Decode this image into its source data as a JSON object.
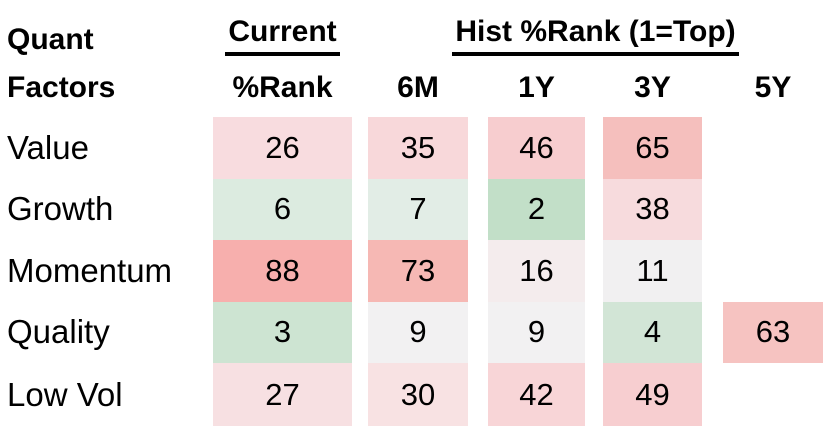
{
  "table": {
    "corner": {
      "line1": "Quant",
      "line2": "Factors"
    },
    "group_headers": {
      "current": "Current",
      "hist": "Hist %Rank (1=Top)"
    },
    "column_headers": {
      "current_rank": "%Rank",
      "h6m": "6M",
      "h1y": "1Y",
      "h3y": "3Y",
      "h5y": "5Y"
    }
  },
  "chart_data": {
    "type": "heatmap",
    "title": "Quant Factors",
    "columns": [
      "Current %Rank",
      "6M",
      "1Y",
      "3Y",
      "5Y"
    ],
    "note": "Percentile ranks, 1=Top; low values shaded green, mid ~white/grey, high values shaded red; blank cells have no data",
    "color_scale": {
      "low": "#c2dfc8",
      "mid": "#f2f1f2",
      "high": "#f7afad"
    },
    "rows": [
      {
        "label": "Value",
        "cells": [
          {
            "v": 26,
            "bg": "#f8dcdf"
          },
          {
            "v": 35,
            "bg": "#f8d8da"
          },
          {
            "v": 46,
            "bg": "#f7cdcf"
          },
          {
            "v": 65,
            "bg": "#f5bfbd"
          },
          {
            "v": null,
            "bg": ""
          }
        ]
      },
      {
        "label": "Growth",
        "cells": [
          {
            "v": 6,
            "bg": "#dcebe0"
          },
          {
            "v": 7,
            "bg": "#e2ede6"
          },
          {
            "v": 2,
            "bg": "#c2dfc8"
          },
          {
            "v": 38,
            "bg": "#f7dbdd"
          },
          {
            "v": null,
            "bg": ""
          }
        ]
      },
      {
        "label": "Momentum",
        "cells": [
          {
            "v": 88,
            "bg": "#f7afad"
          },
          {
            "v": 73,
            "bg": "#f6b8b4"
          },
          {
            "v": 16,
            "bg": "#f4eced"
          },
          {
            "v": 11,
            "bg": "#f1f0f1"
          },
          {
            "v": null,
            "bg": ""
          }
        ]
      },
      {
        "label": "Quality",
        "cells": [
          {
            "v": 3,
            "bg": "#cde4d2"
          },
          {
            "v": 9,
            "bg": "#f2f1f2"
          },
          {
            "v": 9,
            "bg": "#f2f1f2"
          },
          {
            "v": 4,
            "bg": "#d2e5d6"
          },
          {
            "v": 63,
            "bg": "#f6c3c1"
          }
        ]
      },
      {
        "label": "Low Vol",
        "cells": [
          {
            "v": 27,
            "bg": "#f7e0e2"
          },
          {
            "v": 30,
            "bg": "#f8e2e3"
          },
          {
            "v": 42,
            "bg": "#f8d5d7"
          },
          {
            "v": 49,
            "bg": "#f7ced0"
          },
          {
            "v": null,
            "bg": ""
          }
        ]
      }
    ]
  }
}
